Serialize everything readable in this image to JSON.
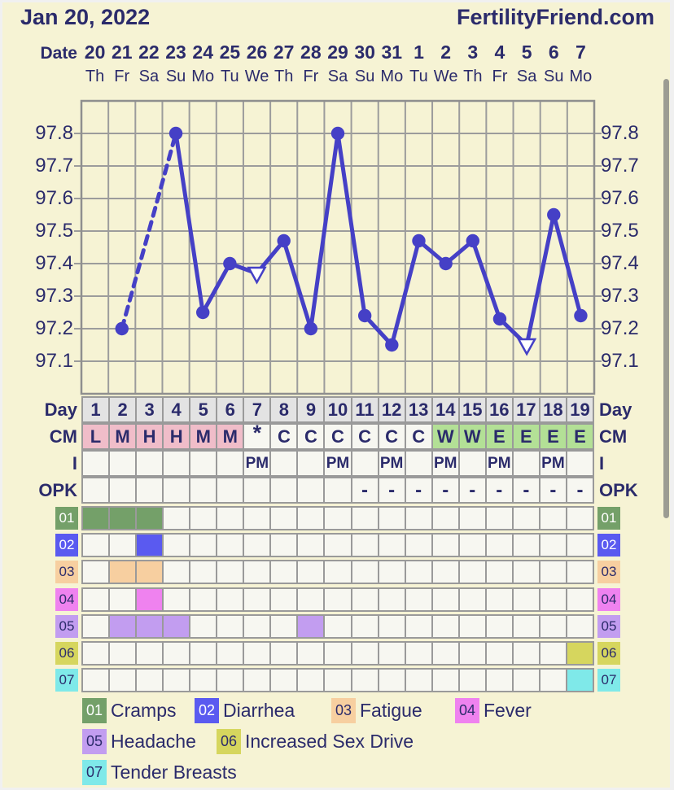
{
  "header": {
    "date_title": "Jan 20, 2022",
    "brand": "FertilityFriend.com"
  },
  "colors": {
    "background": "#f6f3d4",
    "page_edge": "#f0f0f0",
    "text": "#2b2b6b",
    "line": "#4540c6",
    "grid": "#9c9c9c",
    "chart_border": "#8f8f8f",
    "cell_border": "#9a9a9a",
    "day_cell_bg": "#e3e3e3",
    "empty_cell_bg": "#f7f7f1",
    "menses_cell_bg": "#f0bdc9",
    "fertile_cell_bg": "#b3e096",
    "scrollbar": "#9c9c93"
  },
  "chart_data": {
    "type": "line",
    "title": "Basal body temperature chart",
    "x_axis": {
      "date_label": "Date",
      "dates": [
        "20",
        "21",
        "22",
        "23",
        "24",
        "25",
        "26",
        "27",
        "28",
        "29",
        "30",
        "31",
        "1",
        "2",
        "3",
        "4",
        "5",
        "6",
        "7"
      ],
      "weekdays": [
        "Th",
        "Fr",
        "Sa",
        "Su",
        "Mo",
        "Tu",
        "We",
        "Th",
        "Fr",
        "Sa",
        "Su",
        "Mo",
        "Tu",
        "We",
        "Th",
        "Fr",
        "Sa",
        "Su",
        "Mo"
      ]
    },
    "y_axis": {
      "tick_labels": [
        "97.8",
        "97.7",
        "97.6",
        "97.5",
        "97.4",
        "97.3",
        "97.2",
        "97.1"
      ],
      "range": [
        97.0,
        97.9
      ],
      "grid": true,
      "labels_both_sides": true
    },
    "cycle_days": [
      1,
      2,
      3,
      4,
      5,
      6,
      7,
      8,
      9,
      10,
      11,
      12,
      13,
      14,
      15,
      16,
      17,
      18,
      19
    ],
    "temps": [
      null,
      97.2,
      null,
      97.8,
      97.25,
      97.4,
      97.37,
      97.47,
      97.2,
      97.8,
      97.24,
      97.15,
      97.47,
      97.4,
      97.47,
      97.23,
      97.15,
      97.55,
      97.24
    ],
    "markers": [
      "none",
      "dot",
      "none",
      "dot",
      "dot",
      "dot",
      "open-triangle",
      "dot",
      "dot",
      "dot",
      "dot",
      "dot",
      "dot",
      "dot",
      "dot",
      "dot",
      "open-triangle",
      "dot",
      "dot"
    ],
    "missing_days_dashed": [
      3
    ],
    "line_color": "#4540c6"
  },
  "table": {
    "day": {
      "label": "Day",
      "values": [
        "1",
        "2",
        "3",
        "4",
        "5",
        "6",
        "7",
        "8",
        "9",
        "10",
        "11",
        "12",
        "13",
        "14",
        "15",
        "16",
        "17",
        "18",
        "19"
      ]
    },
    "cm": {
      "label": "CM",
      "values": [
        "L",
        "M",
        "H",
        "H",
        "M",
        "M",
        "*",
        "C",
        "C",
        "C",
        "C",
        "C",
        "C",
        "W",
        "W",
        "E",
        "E",
        "E",
        "E"
      ],
      "cell_types": [
        "menses",
        "menses",
        "menses",
        "menses",
        "menses",
        "menses",
        "spotting",
        "plain",
        "plain",
        "plain",
        "plain",
        "plain",
        "plain",
        "fertile",
        "fertile",
        "fertile",
        "fertile",
        "fertile",
        "fertile"
      ]
    },
    "i": {
      "label": "I",
      "values": [
        "",
        "",
        "",
        "",
        "",
        "",
        "PM",
        "",
        "",
        "PM",
        "",
        "PM",
        "",
        "PM",
        "",
        "PM",
        "",
        "PM",
        ""
      ]
    },
    "opk": {
      "label": "OPK",
      "values": [
        "",
        "",
        "",
        "",
        "",
        "",
        "",
        "",
        "",
        "",
        "-",
        "-",
        "-",
        "-",
        "-",
        "-",
        "-",
        "-",
        "-"
      ]
    }
  },
  "symptoms": {
    "rows": [
      {
        "id": "01",
        "name": "Cramps",
        "color": "#74a069",
        "text_color": "#ffffff",
        "days": [
          1,
          2,
          3
        ]
      },
      {
        "id": "02",
        "name": "Diarrhea",
        "color": "#5a5af0",
        "text_color": "#ffffff",
        "days": [
          3
        ]
      },
      {
        "id": "03",
        "name": "Fatigue",
        "color": "#f7cfa0",
        "text_color": "#2b2b6b",
        "days": [
          2,
          3
        ]
      },
      {
        "id": "04",
        "name": "Fever",
        "color": "#ef82ef",
        "text_color": "#2b2b6b",
        "days": [
          3
        ]
      },
      {
        "id": "05",
        "name": "Headache",
        "color": "#c29df0",
        "text_color": "#2b2b6b",
        "days": [
          2,
          3,
          4,
          9
        ]
      },
      {
        "id": "06",
        "name": "Increased Sex Drive",
        "color": "#d6d65e",
        "text_color": "#2b2b6b",
        "days": [
          19
        ]
      },
      {
        "id": "07",
        "name": "Tender Breasts",
        "color": "#7fe9e9",
        "text_color": "#2b2b6b",
        "days": [
          19
        ]
      }
    ]
  }
}
